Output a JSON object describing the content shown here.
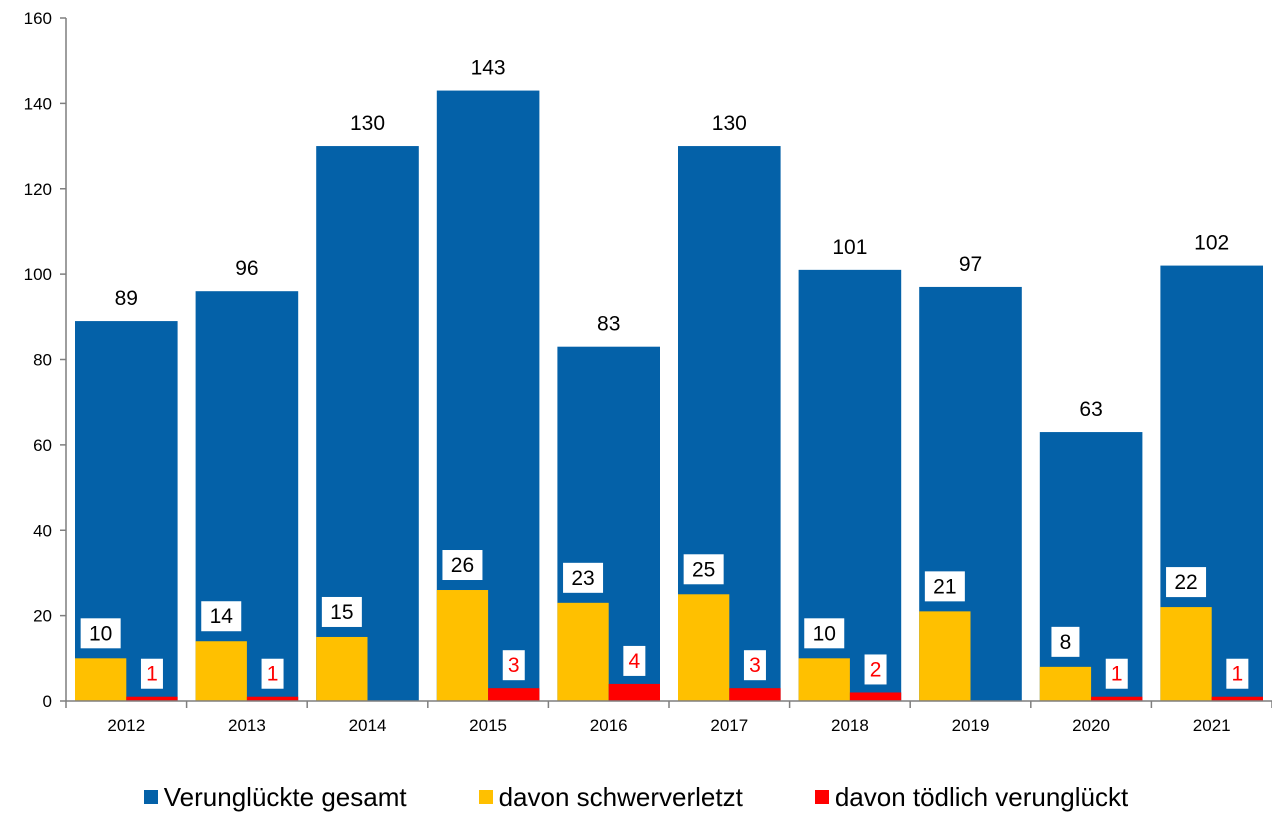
{
  "chart_data": {
    "type": "bar",
    "categories": [
      "2012",
      "2013",
      "2014",
      "2015",
      "2016",
      "2017",
      "2018",
      "2019",
      "2020",
      "2021"
    ],
    "series": [
      {
        "name": "Verunglückte gesamt",
        "color": "#0461A8",
        "values": [
          89,
          96,
          130,
          143,
          83,
          130,
          101,
          97,
          63,
          102
        ]
      },
      {
        "name": "davon schwerverletzt",
        "color": "#FFC000",
        "values": [
          10,
          14,
          15,
          26,
          23,
          25,
          10,
          21,
          8,
          22
        ]
      },
      {
        "name": "davon tödlich verunglückt",
        "color": "#FF0000",
        "values": [
          1,
          1,
          0,
          3,
          4,
          3,
          2,
          0,
          1,
          1
        ]
      }
    ],
    "yticks": [
      "0",
      "20",
      "40",
      "60",
      "80",
      "100",
      "120",
      "140",
      "160"
    ],
    "ylim": [
      0,
      160
    ],
    "legend_position": "bottom",
    "grid": false
  },
  "legend": {
    "items": [
      {
        "label": "Verunglückte gesamt",
        "color": "#0461A8"
      },
      {
        "label": "davon schwerverletzt",
        "color": "#FFC000"
      },
      {
        "label": "davon tödlich verunglückt",
        "color": "#FF0000"
      }
    ]
  }
}
